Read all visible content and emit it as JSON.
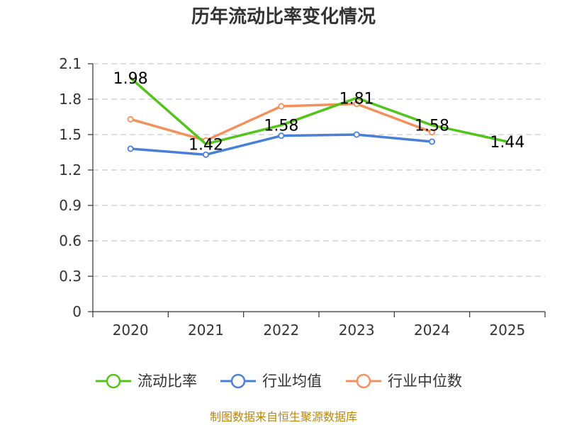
{
  "title": "历年流动比率变化情况",
  "source": "制图数据来自恒生聚源数据库",
  "chart_data": {
    "type": "line",
    "title": "历年流动比率变化情况",
    "categories": [
      "2020",
      "2021",
      "2022",
      "2023",
      "2024",
      "2025"
    ],
    "ylim": [
      0,
      2.1
    ],
    "yticks": [
      "0",
      "0.3",
      "0.6",
      "0.9",
      "1.2",
      "1.5",
      "1.8",
      "2.1"
    ],
    "grid": true,
    "legend_position": "bottom",
    "series": [
      {
        "name": "流动比率",
        "color": "#52c41a",
        "values": [
          1.98,
          1.42,
          1.58,
          1.81,
          1.58,
          1.44
        ],
        "labels": [
          "1.98",
          "1.42",
          "1.58",
          "1.81",
          "1.58",
          "1.44"
        ]
      },
      {
        "name": "行业均值",
        "color": "#4a7fd8",
        "values": [
          1.38,
          1.33,
          1.49,
          1.5,
          1.44,
          null
        ]
      },
      {
        "name": "行业中位数",
        "color": "#f4905a",
        "values": [
          1.63,
          1.45,
          1.74,
          1.76,
          1.52,
          null
        ]
      }
    ]
  }
}
